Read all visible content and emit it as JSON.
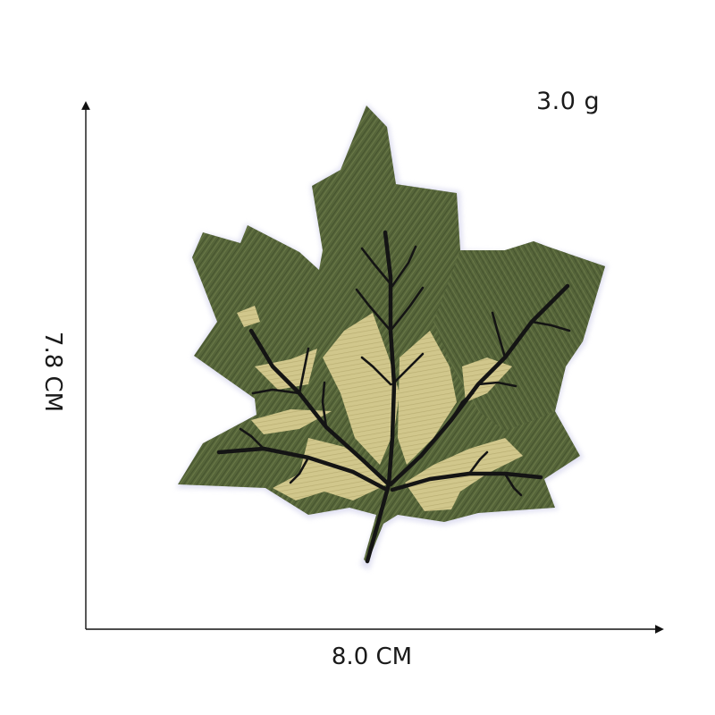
{
  "product": {
    "weight_label": "3.0 g",
    "width_label": "8.0 CM",
    "height_label": "7.8 CM"
  },
  "patch": {
    "subject": "maple-leaf-embroidered-patch",
    "colors": {
      "leaf_dark": "#4a5a31",
      "leaf_mid": "#5d6b3d",
      "leaf_light": "#6f7e4a",
      "leaf_cream": "#d2c98e",
      "vein": "#141414",
      "edge_glow": "#d9d9ef"
    }
  },
  "colors": {
    "background": "#ffffff",
    "text": "#1a1a1a",
    "axis": "#111111"
  }
}
